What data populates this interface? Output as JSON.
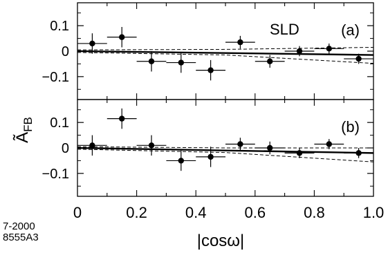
{
  "chart_data": {
    "type": "scatter",
    "xlabel": "|cosω|",
    "ylabel": "Ã",
    "ylabel_subscript": "FB",
    "xlim": [
      0,
      1.0
    ],
    "x_ticks": [
      "0",
      "0.2",
      "0.4",
      "0.6",
      "0.8",
      "1.0"
    ],
    "panels": [
      {
        "label": "(a)",
        "annotation": "SLD",
        "ylim": [
          -0.19,
          0.19
        ],
        "y_ticks": [
          "0.1",
          "0",
          "-0.1"
        ],
        "x": [
          0.05,
          0.15,
          0.25,
          0.35,
          0.45,
          0.55,
          0.65,
          0.75,
          0.85,
          0.95
        ],
        "y": [
          0.03,
          0.055,
          -0.04,
          -0.045,
          -0.075,
          0.035,
          -0.04,
          0.0,
          0.01,
          -0.03
        ],
        "yerr": [
          0.04,
          0.04,
          0.04,
          0.04,
          0.04,
          0.025,
          0.025,
          0.02,
          0.02,
          0.02
        ],
        "fit": {
          "x": [
            0,
            1.0
          ],
          "y": [
            0.0,
            -0.015
          ]
        },
        "band_upper": [
          [
            0,
            0.005
          ],
          [
            0.5,
            0.007
          ],
          [
            1.0,
            0.015
          ]
        ],
        "band_lower": [
          [
            0,
            -0.005
          ],
          [
            0.5,
            -0.015
          ],
          [
            1.0,
            -0.048
          ]
        ]
      },
      {
        "label": "(b)",
        "ylim": [
          -0.19,
          0.19
        ],
        "y_ticks": [
          "0.1",
          "0",
          "-0.1"
        ],
        "x": [
          0.05,
          0.15,
          0.25,
          0.35,
          0.45,
          0.55,
          0.65,
          0.75,
          0.85,
          0.95
        ],
        "y": [
          0.01,
          0.115,
          0.01,
          -0.05,
          -0.035,
          0.015,
          0.0,
          -0.02,
          0.015,
          -0.02
        ],
        "yerr": [
          0.04,
          0.04,
          0.04,
          0.04,
          0.04,
          0.025,
          0.025,
          0.02,
          0.02,
          0.02
        ],
        "fit": {
          "x": [
            0,
            1.0
          ],
          "y": [
            0.0,
            -0.02
          ]
        },
        "band_upper": [
          [
            0,
            0.005
          ],
          [
            0.5,
            0.0
          ],
          [
            1.0,
            0.0
          ]
        ],
        "band_lower": [
          [
            0,
            -0.005
          ],
          [
            0.5,
            -0.018
          ],
          [
            1.0,
            -0.055
          ]
        ]
      }
    ],
    "footer": [
      "7-2000",
      "8555A3"
    ]
  }
}
